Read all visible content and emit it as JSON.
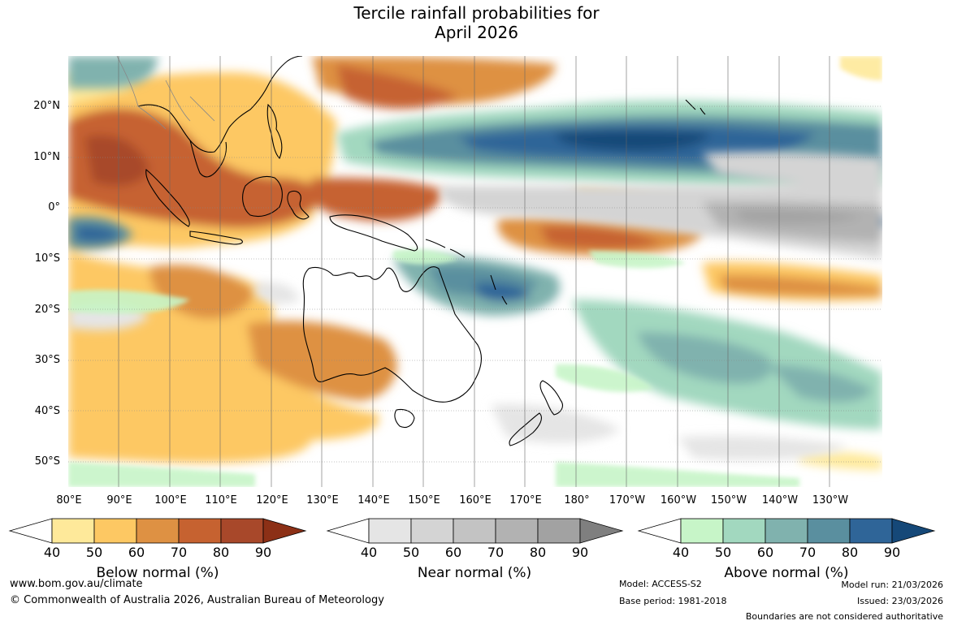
{
  "title_line1": "Tercile rainfall probabilities for",
  "title_line2": "April 2026",
  "map": {
    "lat_labels": [
      "20°N",
      "10°N",
      "0°",
      "10°S",
      "20°S",
      "30°S",
      "40°S",
      "50°S"
    ],
    "lon_labels": [
      "80°E",
      "90°E",
      "100°E",
      "110°E",
      "120°E",
      "130°E",
      "140°E",
      "150°E",
      "160°E",
      "170°E",
      "180°",
      "170°W",
      "160°W",
      "150°W",
      "140°W",
      "130°W"
    ]
  },
  "colorbars": [
    {
      "title": "Below normal (%)",
      "ticks": [
        "40",
        "50",
        "60",
        "70",
        "80",
        "90"
      ],
      "colors": [
        "#ffffff",
        "#fee99a",
        "#fdc863",
        "#de9143",
        "#c66230",
        "#a8482a",
        "#8c3016"
      ]
    },
    {
      "title": "Near normal (%)",
      "ticks": [
        "40",
        "50",
        "60",
        "70",
        "80",
        "90"
      ],
      "colors": [
        "#ffffff",
        "#e5e5e5",
        "#d4d4d4",
        "#c3c3c3",
        "#b2b2b2",
        "#a2a2a2",
        "#7f7f7f"
      ]
    },
    {
      "title": "Above normal (%)",
      "ticks": [
        "40",
        "50",
        "60",
        "70",
        "80",
        "90"
      ],
      "colors": [
        "#ffffff",
        "#c7f5c8",
        "#a2d8bf",
        "#80b2ae",
        "#5a8f9f",
        "#2f6598",
        "#154878"
      ]
    }
  ],
  "footer": {
    "url": "www.bom.gov.au/climate",
    "copyright": "© Commonwealth of Australia 2026, Australian Bureau of Meteorology",
    "model": "Model: ACCESS-S2",
    "base_period": "Base period: 1981-2018",
    "model_run": "Model run: 21/03/2026",
    "issued": "Issued: 23/03/2026",
    "disclaimer": "Boundaries are not considered authoritative"
  }
}
